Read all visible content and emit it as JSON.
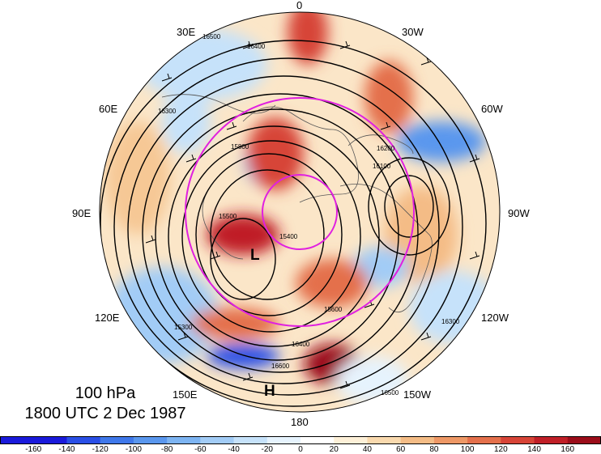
{
  "title": {
    "level": "100 hPa",
    "time": "1800 UTC 2 Dec 1987"
  },
  "longitude_labels": {
    "lon_0": "0",
    "lon_30w": "30W",
    "lon_60w": "60W",
    "lon_90w": "90W",
    "lon_120w": "120W",
    "lon_150w": "150W",
    "lon_180": "180",
    "lon_150e": "150E",
    "lon_120e": "120E",
    "lon_90e": "90E",
    "lon_60e": "60E",
    "lon_30e": "30E"
  },
  "pressure_centers": {
    "low": "L",
    "high": "H"
  },
  "contour_labels": [
    "16500",
    "16400",
    "16300",
    "16200",
    "16100",
    "15800",
    "15600",
    "15500",
    "15400",
    "15300",
    "16600",
    "16500",
    "16400",
    "16300"
  ],
  "colorbar": {
    "ticks": [
      "-160",
      "-140",
      "-120",
      "-100",
      "-80",
      "-60",
      "-40",
      "-20",
      "0",
      "20",
      "40",
      "60",
      "80",
      "100",
      "120",
      "140",
      "160"
    ],
    "colors": [
      "#1a1adb",
      "#2a4fe6",
      "#3f78ea",
      "#5a97ee",
      "#7db4f2",
      "#a2ccf6",
      "#c6e2fa",
      "#e6f3fd",
      "#ffffff",
      "#fdf0d8",
      "#f9d9ae",
      "#f4bc86",
      "#ee9866",
      "#e4704c",
      "#d74437",
      "#c01f27",
      "#9b0d1a"
    ]
  },
  "colors": {
    "contour": "#000000",
    "latitude_ring": "#e020e0",
    "coast": "#555555"
  }
}
